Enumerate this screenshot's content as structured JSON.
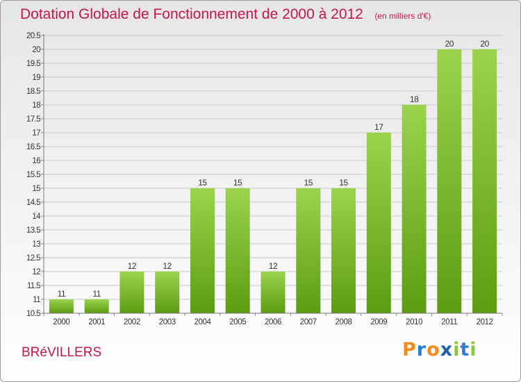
{
  "title": "Dotation Globale de Fonctionnement de 2000 à 2012",
  "unit_note": "(en milliers d'€)",
  "commune": "BRéVILLERS",
  "logo": {
    "text": "Proxiti",
    "letter_colors": [
      "#f08c1e",
      "#2a7fd4",
      "#f08c1e",
      "#1f5fb0",
      "#8cc63f",
      "#2a7fd4",
      "#8cc63f"
    ]
  },
  "colors": {
    "title": "#c8154b",
    "bar_light": "#9bd34f",
    "bar_dark": "#5c9c12",
    "grid": "#c8c8c8"
  },
  "chart_data": {
    "type": "bar",
    "categories": [
      "2000",
      "2001",
      "2002",
      "2003",
      "2004",
      "2005",
      "2006",
      "2007",
      "2008",
      "2009",
      "2010",
      "2011",
      "2012"
    ],
    "values": [
      11,
      11,
      12,
      12,
      15,
      15,
      12,
      15,
      15,
      17,
      18,
      20,
      20
    ],
    "ylim": [
      10.5,
      20.5
    ],
    "yticks": [
      "10.5",
      "11",
      "11.5",
      "12",
      "12.5",
      "13",
      "13.5",
      "14",
      "14.5",
      "15",
      "15.5",
      "16",
      "16.5",
      "17",
      "17.5",
      "18",
      "18.5",
      "19",
      "19.5",
      "20",
      "20.5"
    ],
    "grid": true,
    "data_labels": true
  }
}
